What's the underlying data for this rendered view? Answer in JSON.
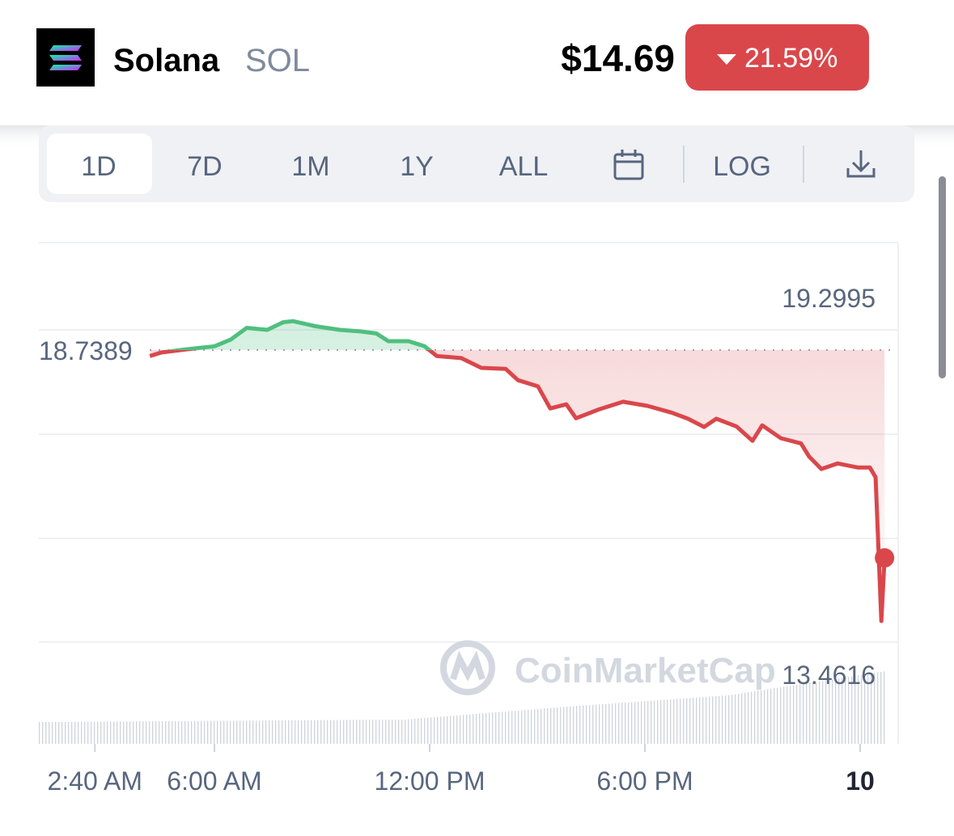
{
  "header": {
    "name": "Solana",
    "symbol": "SOL",
    "price": "$14.69",
    "change": "21.59%"
  },
  "tabs": [
    "1D",
    "7D",
    "1M",
    "1Y",
    "ALL",
    "LOG"
  ],
  "watermark": "CoinMarketCap",
  "chart_data": {
    "type": "line",
    "x": [
      4.2,
      4.53,
      5.21,
      6.0,
      6.45,
      6.9,
      7.47,
      7.92,
      8.19,
      8.82,
      9.5,
      10.06,
      10.51,
      10.85,
      11.41,
      11.86,
      12.2,
      12.88,
      13.44,
      14.12,
      14.46,
      15.02,
      15.36,
      15.81,
      16.08,
      16.71,
      17.39,
      18.07,
      18.74,
      19.2,
      19.65,
      19.99,
      20.55,
      21.0,
      21.27,
      21.79,
      22.35,
      22.58,
      22.92,
      23.37,
      23.93,
      24.27,
      24.43,
      24.59,
      24.68
    ],
    "values": [
      18.62,
      18.69,
      18.75,
      18.81,
      18.94,
      19.17,
      19.13,
      19.28,
      19.2995,
      19.2,
      19.13,
      19.1,
      19.06,
      18.91,
      18.91,
      18.81,
      18.62,
      18.58,
      18.39,
      18.37,
      18.15,
      18.03,
      17.6,
      17.68,
      17.41,
      17.58,
      17.73,
      17.65,
      17.52,
      17.4,
      17.24,
      17.4,
      17.25,
      16.97,
      17.27,
      17.02,
      16.92,
      16.66,
      16.42,
      16.53,
      16.45,
      16.45,
      16.26,
      13.4616,
      14.69
    ],
    "xlim": [
      1.105,
      25.06
    ],
    "ylim": [
      11.07,
      20.83
    ],
    "xticks": [
      {
        "value": 2.667,
        "label": "2:40 AM"
      },
      {
        "value": 6,
        "label": "6:00 AM"
      },
      {
        "value": 12,
        "label": "12:00 PM"
      },
      {
        "value": 18,
        "label": "6:00 PM"
      },
      {
        "value": 24,
        "label": "10"
      }
    ],
    "reference_value": 18.7389,
    "max_value": 19.2995,
    "min_value": 13.4616,
    "up_color": "#4fbf7f",
    "down_color": "#d9474b"
  }
}
